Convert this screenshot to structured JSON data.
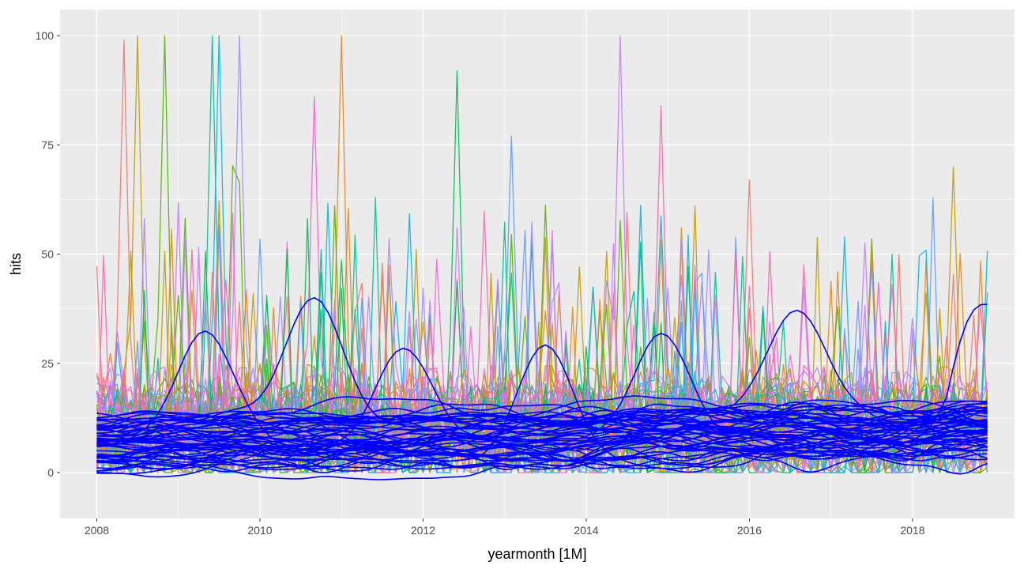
{
  "chart_data": {
    "type": "line",
    "title": "",
    "xlabel": "yearmonth [1M]",
    "ylabel": "hits",
    "xlim": [
      2007.55,
      2019.25
    ],
    "ylim": [
      -10.5,
      106
    ],
    "x_ticks": [
      2008,
      2010,
      2012,
      2014,
      2016,
      2018
    ],
    "x_tick_labels": [
      "2008",
      "2010",
      "2012",
      "2014",
      "2016",
      "2018"
    ],
    "y_ticks": [
      0,
      25,
      50,
      75,
      100
    ],
    "y_tick_labels": [
      "0",
      "25",
      "50",
      "75",
      "100"
    ],
    "x_range": [
      2008.0,
      2018.917
    ],
    "grid": true,
    "legend": "none",
    "colors": {
      "panel_bg": "#ebebeb",
      "grid_major": "#ffffff",
      "smooth_line": "#0000ff",
      "series_palette": [
        "#f8766d",
        "#c49a00",
        "#53b400",
        "#00c094",
        "#00b6eb",
        "#a58aff",
        "#fb61d7",
        "#e7861b",
        "#00bc4f",
        "#619cff",
        "#c77cff",
        "#ff64b0"
      ]
    },
    "raw_series_notes": "Many monthly search-interest series (raw, multicolored) with occasional spikes to 100, overlaid with blue smoothed trend lines",
    "raw_series_peaks": [
      {
        "x": 2008.33,
        "y": 99
      },
      {
        "x": 2008.5,
        "y": 100
      },
      {
        "x": 2008.83,
        "y": 100
      },
      {
        "x": 2009.42,
        "y": 100
      },
      {
        "x": 2009.5,
        "y": 100
      },
      {
        "x": 2009.75,
        "y": 100
      },
      {
        "x": 2010.67,
        "y": 86
      },
      {
        "x": 2011.0,
        "y": 100
      },
      {
        "x": 2012.42,
        "y": 92
      },
      {
        "x": 2013.08,
        "y": 77
      },
      {
        "x": 2014.42,
        "y": 100
      },
      {
        "x": 2014.92,
        "y": 84
      },
      {
        "x": 2016.0,
        "y": 67
      },
      {
        "x": 2018.5,
        "y": 70
      }
    ],
    "smooth_series_peaks": [
      {
        "x": 2009.33,
        "y": 35
      },
      {
        "x": 2010.67,
        "y": 42
      },
      {
        "x": 2011.75,
        "y": 31
      },
      {
        "x": 2013.5,
        "y": 29
      },
      {
        "x": 2014.92,
        "y": 34.5
      },
      {
        "x": 2016.58,
        "y": 37.5
      },
      {
        "x": 2018.92,
        "y": 38.5
      }
    ]
  }
}
